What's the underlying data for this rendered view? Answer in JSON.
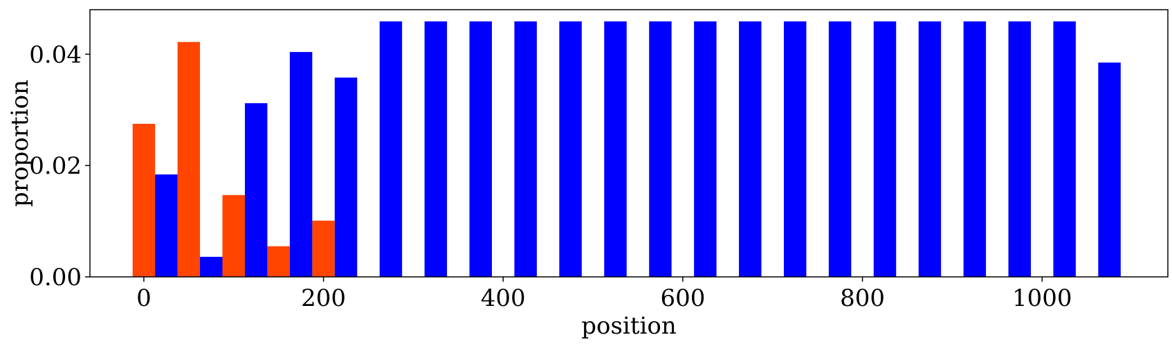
{
  "chart_data": {
    "type": "bar",
    "title": "",
    "xlabel": "position",
    "ylabel": "proportion",
    "xlim": [
      -60,
      1140
    ],
    "ylim": [
      0,
      0.048
    ],
    "bar_width": 25,
    "xticks": [
      0,
      200,
      400,
      600,
      800,
      1000
    ],
    "xtick_labels": [
      "0",
      "200",
      "400",
      "600",
      "800",
      "1000"
    ],
    "yticks": [
      0,
      0.02,
      0.04
    ],
    "ytick_labels": [
      "0.00",
      "0.02",
      "0.04"
    ],
    "grid": false,
    "series": [
      {
        "color": "#ff4500",
        "x": [
          0,
          50,
          100,
          150,
          200
        ],
        "values": [
          0.0275,
          0.0422,
          0.0147,
          0.0055,
          0.0101
        ]
      },
      {
        "color": "#0000ff",
        "x": [
          25,
          75,
          125,
          175,
          225,
          275,
          325,
          375,
          425,
          475,
          525,
          575,
          625,
          675,
          725,
          775,
          825,
          875,
          925,
          975,
          1025,
          1075
        ],
        "values": [
          0.0184,
          0.0036,
          0.0312,
          0.0404,
          0.0358,
          0.0459,
          0.0459,
          0.0459,
          0.0459,
          0.0459,
          0.0459,
          0.0459,
          0.0459,
          0.0459,
          0.0459,
          0.0459,
          0.0459,
          0.0459,
          0.0459,
          0.0459,
          0.0459,
          0.0385
        ]
      }
    ]
  }
}
